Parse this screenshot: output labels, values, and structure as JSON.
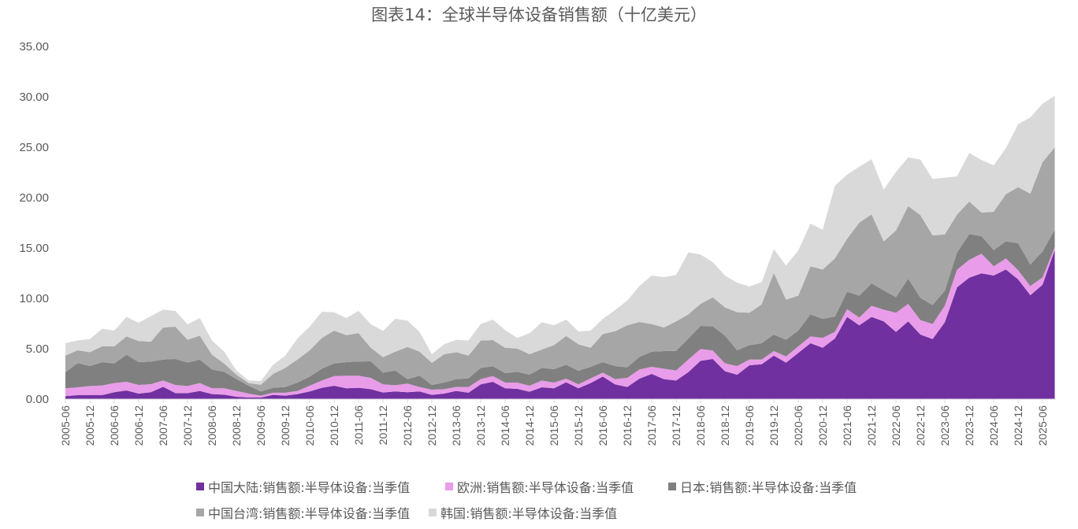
{
  "chart_data": {
    "type": "area",
    "stacked": true,
    "title": "图表14：全球半导体设备销售额（十亿美元）",
    "xlabel": "",
    "ylabel": "",
    "ylim": [
      0,
      35
    ],
    "yticks": [
      "0.00",
      "5.00",
      "10.00",
      "15.00",
      "20.00",
      "25.00",
      "30.00",
      "35.00"
    ],
    "grid": false,
    "legend_position": "bottom",
    "categories": [
      "2005-06",
      "2005-09",
      "2005-12",
      "2006-03",
      "2006-06",
      "2006-09",
      "2006-12",
      "2007-03",
      "2007-06",
      "2007-09",
      "2007-12",
      "2008-03",
      "2008-06",
      "2008-09",
      "2008-12",
      "2009-03",
      "2009-06",
      "2009-09",
      "2009-12",
      "2010-03",
      "2010-06",
      "2010-09",
      "2010-12",
      "2011-03",
      "2011-06",
      "2011-09",
      "2011-12",
      "2012-03",
      "2012-06",
      "2012-09",
      "2012-12",
      "2013-03",
      "2013-06",
      "2013-09",
      "2013-12",
      "2014-03",
      "2014-06",
      "2014-09",
      "2014-12",
      "2015-03",
      "2015-06",
      "2015-09",
      "2015-12",
      "2016-03",
      "2016-06",
      "2016-09",
      "2016-12",
      "2017-03",
      "2017-06",
      "2017-09",
      "2017-12",
      "2018-03",
      "2018-06",
      "2018-09",
      "2018-12",
      "2019-03",
      "2019-06",
      "2019-09",
      "2019-12",
      "2020-03",
      "2020-06",
      "2020-09",
      "2020-12",
      "2021-03",
      "2021-06",
      "2021-09",
      "2021-12",
      "2022-03",
      "2022-06",
      "2022-09",
      "2022-12",
      "2023-03",
      "2023-06",
      "2023-09",
      "2023-12",
      "2024-03",
      "2024-06",
      "2024-09",
      "2024-12",
      "2025-03",
      "2025-06",
      "2025-09"
    ],
    "series": [
      {
        "name": "中国大陆:销售额:半导体设备:当季值",
        "color": "#7030A0",
        "values": [
          0.29,
          0.39,
          0.39,
          0.39,
          0.68,
          0.86,
          0.55,
          0.68,
          1.22,
          0.6,
          0.6,
          0.81,
          0.5,
          0.44,
          0.23,
          0.16,
          0.16,
          0.42,
          0.34,
          0.5,
          0.76,
          1.12,
          1.33,
          1.07,
          1.12,
          0.99,
          0.65,
          0.76,
          0.68,
          0.76,
          0.42,
          0.55,
          0.81,
          0.63,
          1.46,
          1.72,
          1.07,
          1.02,
          0.73,
          1.17,
          1.07,
          1.67,
          1.07,
          1.59,
          2.24,
          1.46,
          1.2,
          2.03,
          2.5,
          1.98,
          1.85,
          2.68,
          3.8,
          3.98,
          2.76,
          2.42,
          3.36,
          3.46,
          4.32,
          3.62,
          4.58,
          5.55,
          5.1,
          6.02,
          8.15,
          7.32,
          8.15,
          7.71,
          6.67,
          7.71,
          6.41,
          5.96,
          7.63,
          11.09,
          12.05,
          12.48,
          12.27,
          12.86,
          11.88,
          10.31,
          11.35,
          14.8
        ]
      },
      {
        "name": "欧洲:销售额:半导体设备:当季值",
        "color": "#E99CE9",
        "values": [
          0.78,
          0.78,
          0.91,
          0.96,
          0.91,
          0.86,
          0.86,
          0.8,
          0.63,
          0.81,
          0.7,
          0.78,
          0.57,
          0.63,
          0.58,
          0.39,
          0.18,
          0.21,
          0.29,
          0.31,
          0.57,
          0.73,
          0.96,
          1.25,
          1.2,
          1.12,
          0.81,
          0.62,
          0.86,
          0.44,
          0.52,
          0.44,
          0.39,
          0.57,
          0.52,
          0.57,
          0.57,
          0.62,
          0.6,
          0.68,
          0.57,
          0.36,
          0.39,
          0.47,
          0.39,
          0.52,
          0.91,
          0.91,
          0.7,
          1.04,
          0.99,
          1.25,
          1.17,
          0.84,
          0.79,
          0.86,
          0.57,
          0.47,
          0.45,
          0.62,
          0.65,
          0.67,
          0.97,
          0.65,
          0.78,
          0.78,
          1.12,
          1.17,
          1.9,
          1.74,
          1.43,
          1.49,
          1.64,
          1.75,
          1.78,
          1.95,
          0.91,
          1.1,
          0.91,
          0.91,
          0.73,
          0.28
        ]
      },
      {
        "name": "日本:销售额:半导体设备:当季值",
        "color": "#808080",
        "values": [
          1.61,
          2.4,
          1.98,
          2.32,
          1.95,
          2.68,
          2.26,
          2.24,
          2.08,
          2.57,
          2.32,
          2.34,
          1.87,
          1.64,
          1.17,
          0.78,
          0.42,
          0.49,
          0.57,
          0.83,
          0.91,
          1.17,
          1.25,
          1.35,
          1.41,
          1.64,
          1.17,
          1.46,
          0.44,
          1.12,
          0.47,
          0.65,
          0.78,
          0.86,
          1.12,
          0.97,
          0.94,
          1.07,
          1.09,
          1.25,
          1.33,
          1.38,
          1.35,
          1.14,
          1.04,
          1.3,
          1.04,
          1.25,
          1.51,
          1.75,
          1.95,
          2.09,
          2.3,
          2.42,
          2.75,
          1.56,
          1.43,
          1.62,
          1.64,
          1.65,
          1.57,
          2.19,
          1.9,
          1.51,
          1.72,
          2.16,
          2.21,
          1.9,
          1.56,
          2.5,
          2.21,
          1.9,
          1.49,
          1.71,
          2.55,
          1.74,
          1.61,
          1.69,
          2.68,
          2.14,
          2.58,
          1.74
        ]
      },
      {
        "name": "中国台湾:销售额:半导体设备:当季值",
        "color": "#A6A6A6",
        "values": [
          1.64,
          1.27,
          1.38,
          1.56,
          1.69,
          1.82,
          2.09,
          1.98,
          3.18,
          3.21,
          2.27,
          2.37,
          1.46,
          0.83,
          0.44,
          0.26,
          0.67,
          1.38,
          1.9,
          2.29,
          2.6,
          3.05,
          3.26,
          2.68,
          2.81,
          1.35,
          1.53,
          1.87,
          3.2,
          2.39,
          2.18,
          2.81,
          2.68,
          2.26,
          2.71,
          2.6,
          2.52,
          2.31,
          2.03,
          1.82,
          2.39,
          2.86,
          2.63,
          1.9,
          2.79,
          3.46,
          4.17,
          3.47,
          2.74,
          2.34,
          2.92,
          2.39,
          2.18,
          2.86,
          2.8,
          3.78,
          3.21,
          3.85,
          6.11,
          3.98,
          3.46,
          4.77,
          4.89,
          5.78,
          5.26,
          7.26,
          6.85,
          4.87,
          6.61,
          7.21,
          8.21,
          6.9,
          5.59,
          3.76,
          3.23,
          2.35,
          3.8,
          4.69,
          5.57,
          7.03,
          8.86,
          8.16
        ]
      },
      {
        "name": "韩国:销售额:半导体设备:当季值",
        "color": "#D9D9D9",
        "values": [
          1.23,
          0.99,
          1.3,
          1.75,
          1.57,
          1.93,
          1.82,
          2.53,
          1.77,
          1.56,
          1.53,
          1.75,
          1.41,
          1.17,
          0.42,
          0.26,
          0.37,
          0.91,
          1.22,
          2.09,
          2.35,
          2.6,
          1.82,
          1.7,
          2.21,
          2.35,
          2.61,
          3.26,
          2.61,
          1.96,
          0.86,
          0.99,
          1.23,
          1.49,
          1.64,
          2.03,
          1.75,
          1.05,
          2.09,
          2.71,
          1.96,
          1.62,
          1.28,
          1.7,
          1.51,
          2.09,
          2.47,
          3.56,
          4.82,
          5.0,
          4.61,
          6.15,
          4.9,
          3.5,
          3.17,
          2.92,
          2.6,
          2.21,
          2.35,
          3.39,
          4.48,
          4.24,
          3.96,
          7.21,
          6.38,
          5.55,
          5.47,
          5.15,
          5.81,
          4.82,
          5.51,
          5.6,
          5.63,
          3.8,
          4.82,
          5.21,
          4.61,
          4.56,
          6.25,
          7.56,
          5.8,
          5.12
        ]
      }
    ]
  }
}
